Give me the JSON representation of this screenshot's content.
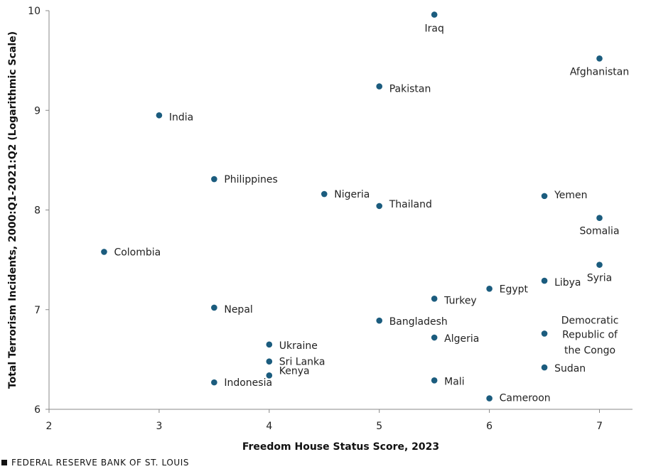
{
  "chart_data": {
    "type": "scatter",
    "xlabel": "Freedom House Status Score, 2023",
    "ylabel": "Total Terrorism Incidents, 2000:Q1-2021:Q2 (Logarithmic Scale)",
    "xlim": [
      2,
      7.3
    ],
    "ylim": [
      6,
      10
    ],
    "xticks": [
      "2",
      "3",
      "4",
      "5",
      "6",
      "7"
    ],
    "yticks": [
      "6",
      "7",
      "8",
      "9",
      "10"
    ],
    "point_color": "#1b5c7e",
    "points": [
      {
        "name": "Iraq",
        "x": 5.5,
        "y": 9.96
      },
      {
        "name": "Afghanistan",
        "x": 7.0,
        "y": 9.52
      },
      {
        "name": "Pakistan",
        "x": 5.0,
        "y": 9.24
      },
      {
        "name": "India",
        "x": 3.0,
        "y": 8.95
      },
      {
        "name": "Philippines",
        "x": 3.5,
        "y": 8.31
      },
      {
        "name": "Nigeria",
        "x": 4.5,
        "y": 8.16
      },
      {
        "name": "Thailand",
        "x": 5.0,
        "y": 8.04
      },
      {
        "name": "Yemen",
        "x": 6.5,
        "y": 8.14
      },
      {
        "name": "Somalia",
        "x": 7.0,
        "y": 7.92
      },
      {
        "name": "Colombia",
        "x": 2.5,
        "y": 7.58
      },
      {
        "name": "Syria",
        "x": 7.0,
        "y": 7.45
      },
      {
        "name": "Libya",
        "x": 6.5,
        "y": 7.29
      },
      {
        "name": "Egypt",
        "x": 6.0,
        "y": 7.21
      },
      {
        "name": "Turkey",
        "x": 5.5,
        "y": 7.11
      },
      {
        "name": "Nepal",
        "x": 3.5,
        "y": 7.02
      },
      {
        "name": "Bangladesh",
        "x": 5.0,
        "y": 6.89
      },
      {
        "name": "Democratic Republic of the Congo",
        "x": 6.5,
        "y": 6.76
      },
      {
        "name": "Algeria",
        "x": 5.5,
        "y": 6.72
      },
      {
        "name": "Ukraine",
        "x": 4.0,
        "y": 6.65
      },
      {
        "name": "Sri Lanka",
        "x": 4.0,
        "y": 6.48
      },
      {
        "name": "Sudan",
        "x": 6.5,
        "y": 6.42
      },
      {
        "name": "Kenya",
        "x": 4.0,
        "y": 6.34
      },
      {
        "name": "Mali",
        "x": 5.5,
        "y": 6.29
      },
      {
        "name": "Indonesia",
        "x": 3.5,
        "y": 6.27
      },
      {
        "name": "Cameroon",
        "x": 6.0,
        "y": 6.11
      }
    ]
  },
  "footer": {
    "source": "FEDERAL RESERVE BANK OF ST. LOUIS"
  }
}
